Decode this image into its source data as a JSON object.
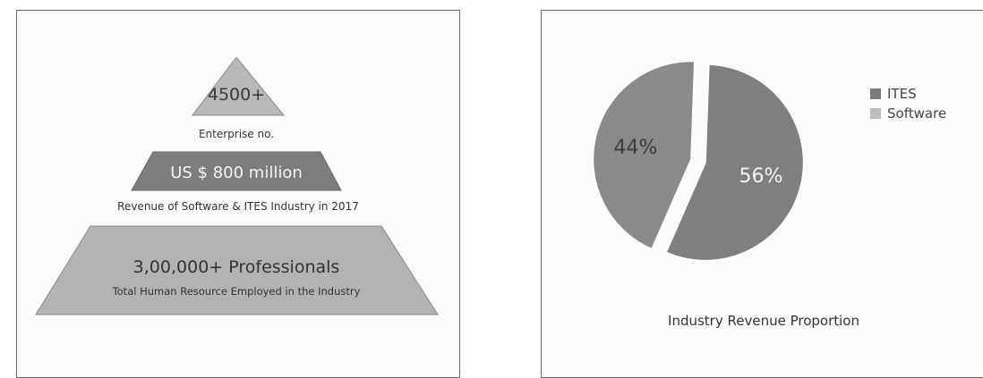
{
  "pyramid": {
    "top": {
      "value": "4500+",
      "caption": "Enterprise no."
    },
    "middle": {
      "value": "US $ 800 million",
      "caption": "Revenue of Software & ITES Industry in 2017"
    },
    "bottom": {
      "value": "3,00,000+ Professionals",
      "caption": "Total Human Resource Employed in the Industry"
    }
  },
  "chart_data": {
    "type": "pie",
    "title": "Industry Revenue Proportion",
    "series": [
      {
        "name": "ITES",
        "value": 56,
        "label": "56%",
        "color": "#7f7f7f"
      },
      {
        "name": "Software",
        "value": 44,
        "label": "44%",
        "color": "#8a8a8a"
      }
    ],
    "legend": {
      "placement": "right",
      "entries": [
        "ITES",
        "Software"
      ],
      "colors": [
        "#7a7a7a",
        "#bdbdbd"
      ]
    }
  }
}
